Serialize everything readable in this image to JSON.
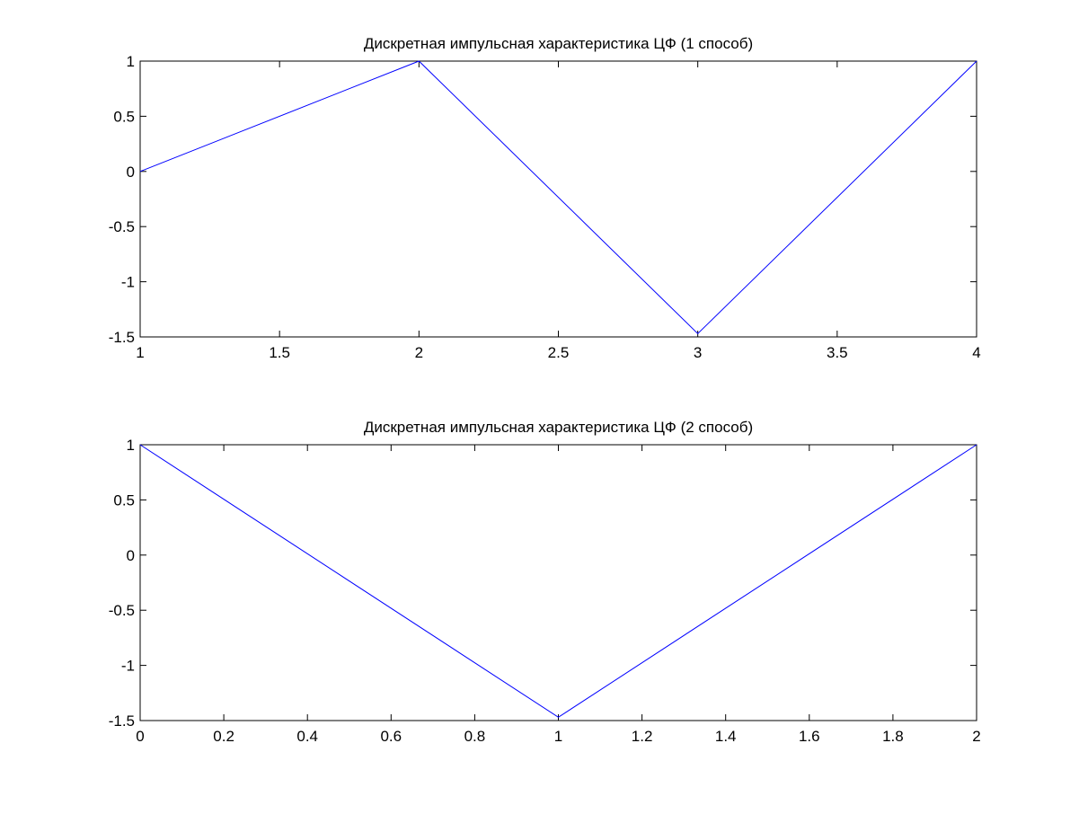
{
  "figure": {
    "background": "#ffffff",
    "line_color": "#0000ff",
    "axis_color": "#000000"
  },
  "chart_data": [
    {
      "type": "line",
      "title": "Дискретная импульсная характеристика ЦФ (1 способ)",
      "xlabel": "",
      "ylabel": "",
      "xlim": [
        1,
        4
      ],
      "ylim": [
        -1.5,
        1
      ],
      "xticks": [
        1,
        1.5,
        2,
        2.5,
        3,
        3.5,
        4
      ],
      "xtick_labels": [
        "1",
        "1.5",
        "2",
        "2.5",
        "3",
        "3.5",
        "4"
      ],
      "yticks": [
        -1.5,
        -1,
        -0.5,
        0,
        0.5,
        1
      ],
      "ytick_labels": [
        "-1.5",
        "-1",
        "-0.5",
        "0",
        "0.5",
        "1"
      ],
      "grid": false,
      "series": [
        {
          "x": [
            1,
            2,
            3,
            4
          ],
          "y": [
            0,
            1,
            -1.47,
            1
          ],
          "color": "#0000ff"
        }
      ]
    },
    {
      "type": "line",
      "title": "Дискретная импульсная характеристика ЦФ (2 способ)",
      "xlabel": "",
      "ylabel": "",
      "xlim": [
        0,
        2
      ],
      "ylim": [
        -1.5,
        1
      ],
      "xticks": [
        0,
        0.2,
        0.4,
        0.6,
        0.8,
        1,
        1.2,
        1.4,
        1.6,
        1.8,
        2
      ],
      "xtick_labels": [
        "0",
        "0.2",
        "0.4",
        "0.6",
        "0.8",
        "1",
        "1.2",
        "1.4",
        "1.6",
        "1.8",
        "2"
      ],
      "yticks": [
        -1.5,
        -1,
        -0.5,
        0,
        0.5,
        1
      ],
      "ytick_labels": [
        "-1.5",
        "-1",
        "-0.5",
        "0",
        "0.5",
        "1"
      ],
      "grid": false,
      "series": [
        {
          "x": [
            0,
            1,
            2
          ],
          "y": [
            1,
            -1.47,
            1
          ],
          "color": "#0000ff"
        }
      ]
    }
  ]
}
